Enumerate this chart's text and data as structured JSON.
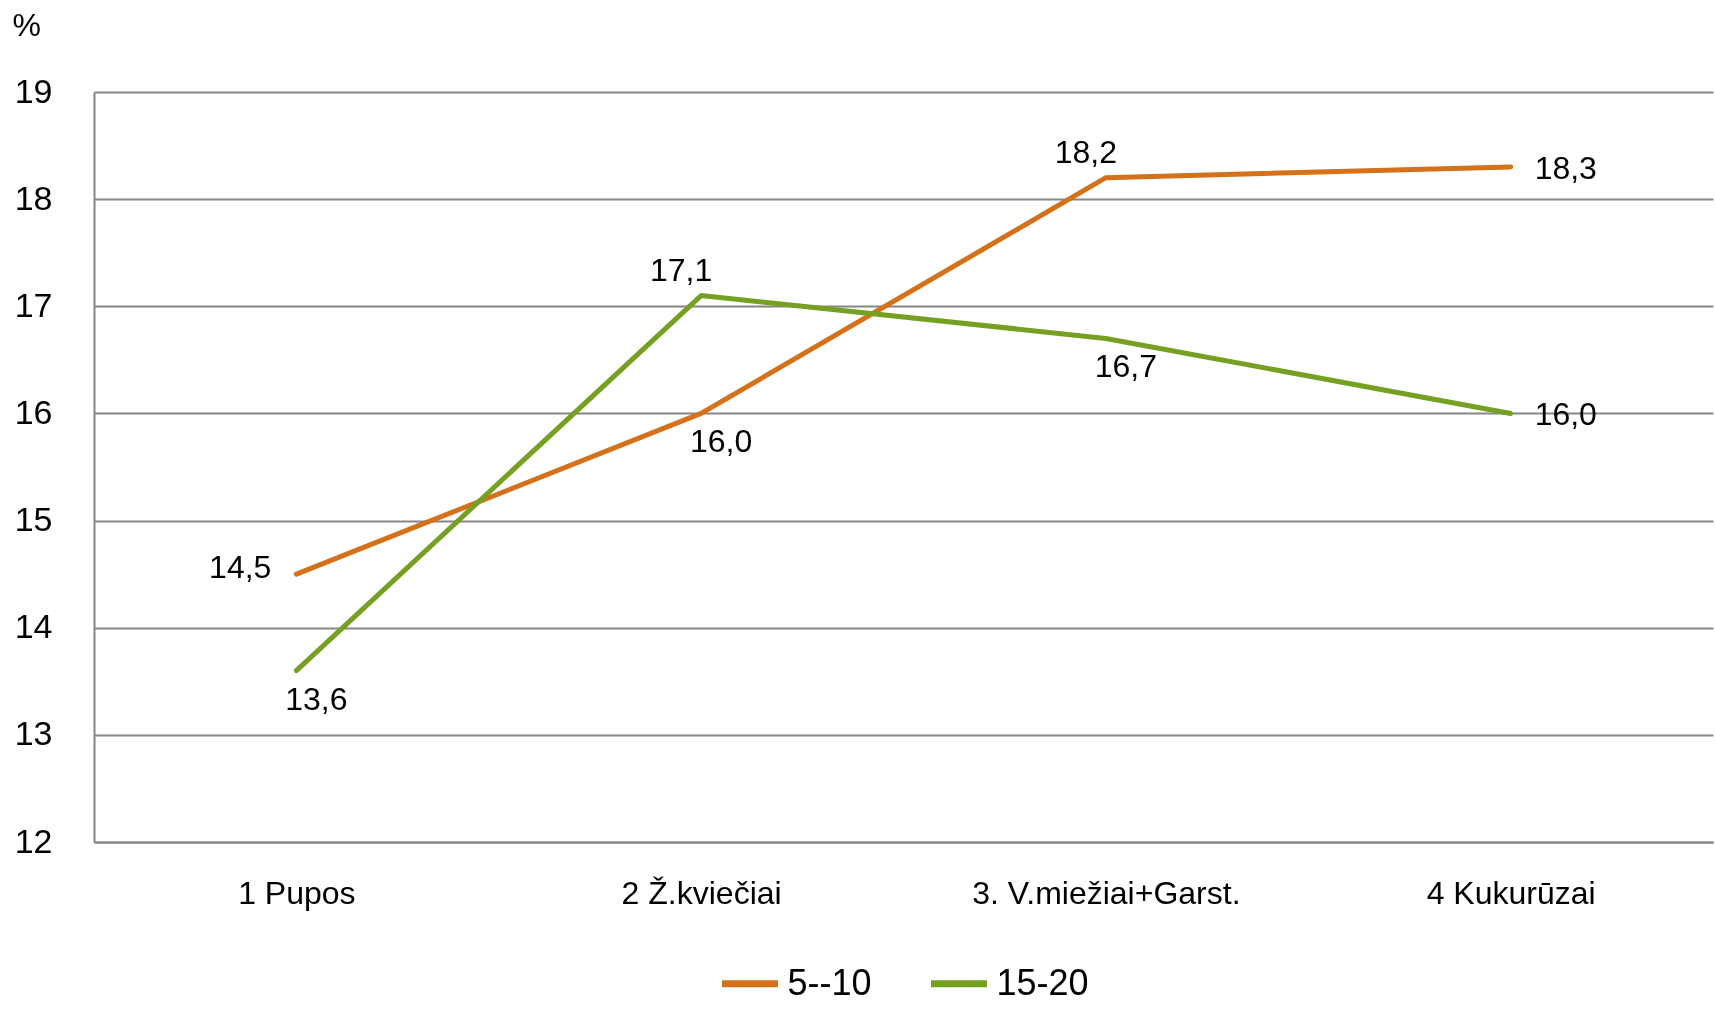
{
  "chart_data": {
    "type": "line",
    "ylabel": "%",
    "categories": [
      "1 Pupos",
      "2 Ž.kviečiai",
      "3. V.miežiai+Garst.",
      "4 Kukurūzai"
    ],
    "series": [
      {
        "name": "5--10",
        "color": "#d4711a",
        "values": [
          14.5,
          16.0,
          18.2,
          18.3
        ],
        "value_labels": [
          "14,5",
          "16,0",
          "18,2",
          "18,3"
        ]
      },
      {
        "name": "15-20",
        "color": "#76a022",
        "values": [
          13.6,
          17.1,
          16.7,
          16.0
        ],
        "value_labels": [
          "13,6",
          "17,1",
          "16,7",
          "16,0"
        ]
      }
    ],
    "ylim": [
      12,
      19
    ],
    "yticks": [
      12,
      13,
      14,
      15,
      16,
      17,
      18,
      19
    ],
    "grid": "y",
    "legend": "bottom",
    "line_style": "solid"
  }
}
